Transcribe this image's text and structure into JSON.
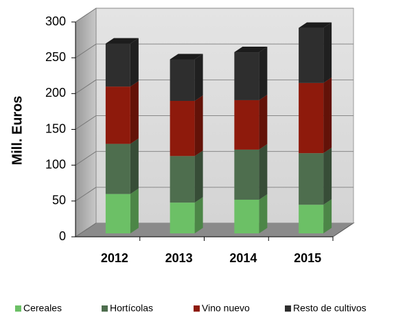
{
  "chart_data": {
    "type": "bar",
    "stacked": true,
    "ylabel": "Mill. Euros",
    "categories": [
      "2012",
      "2013",
      "2014",
      "2015"
    ],
    "series": [
      {
        "name": "Cereales",
        "color": "#6cc066",
        "values": [
          55,
          43,
          47,
          40
        ]
      },
      {
        "name": "Hortícolas",
        "color": "#4e6e4e",
        "values": [
          70,
          65,
          70,
          72
        ]
      },
      {
        "name": "Vino nuevo",
        "color": "#8e1a0c",
        "values": [
          80,
          77,
          69,
          98
        ]
      },
      {
        "name": "Resto de cultivos",
        "color": "#2e2e2e",
        "values": [
          60,
          58,
          67,
          77
        ]
      }
    ],
    "ylim": [
      0,
      300
    ],
    "yticks": [
      0,
      50,
      100,
      150,
      200,
      250,
      300
    ],
    "grid": true,
    "legend": "bottom"
  }
}
